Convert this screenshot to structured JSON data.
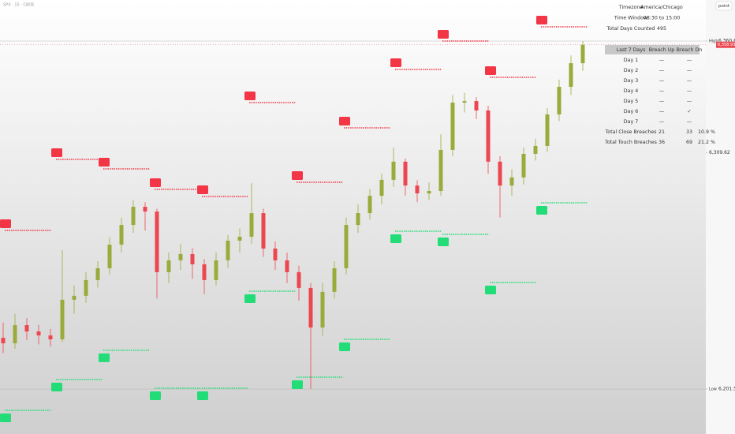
{
  "header": {
    "symbol": "SPX · 15 · CBOE",
    "button": "point"
  },
  "info": [
    [
      "Timezone",
      "America/Chicago"
    ],
    [
      "Time Window",
      "08:30 to 15:00"
    ],
    [
      "Total Days Counted",
      "495"
    ]
  ],
  "table": {
    "header": [
      "Last 7 Days",
      "Breach Up",
      "Breach Dn"
    ],
    "rows": [
      [
        "Day 1",
        "—",
        "—"
      ],
      [
        "Day 2",
        "—",
        "—"
      ],
      [
        "Day 3",
        "—",
        "—"
      ],
      [
        "Day 4",
        "—",
        "—"
      ],
      [
        "Day 5",
        "—",
        "—"
      ],
      [
        "Day 6",
        "—",
        "✓"
      ],
      [
        "Day 7",
        "—",
        "—"
      ],
      [
        "Total Close Breaches",
        "21",
        "33",
        "10.9 %"
      ],
      [
        "Total Touch Breaches",
        "36",
        "69",
        "21.2 %"
      ]
    ]
  },
  "chart_data": {
    "type": "candlestick",
    "open": [
      6225.0,
      6222.5,
      6230.8,
      6227.9,
      6226.1,
      6224.3,
      6242.4,
      6244.2,
      6251.4,
      6256.8,
      6267.6,
      6276.6,
      6284.9,
      6282.7,
      6255.0,
      6260.4,
      6263.3,
      6258.6,
      6251.4,
      6260.4,
      6269.4,
      6271.2,
      6282.0,
      6265.8,
      6260.4,
      6255.0,
      6247.8,
      6229.7,
      6246.0,
      6256.8,
      6276.6,
      6282.0,
      6289.9,
      6297.2,
      6305.5,
      6294.6,
      6291.0,
      6292.1,
      6310.9,
      6332.5,
      6333.2,
      6328.9,
      6305.5,
      6294.6,
      6298.3,
      6309.1,
      6312.7,
      6327.1,
      6339.7,
      6350.5
    ],
    "high": [
      6232.0,
      6236.0,
      6234.0,
      6231.0,
      6229.0,
      6265.0,
      6249.0,
      6255.0,
      6260.0,
      6271.0,
      6280.0,
      6288.0,
      6287.0,
      6284.0,
      6264.0,
      6268.0,
      6266.0,
      6261.0,
      6264.0,
      6272.0,
      6275.0,
      6295.7,
      6284.0,
      6269.0,
      6264.0,
      6258.0,
      6250.0,
      6250.0,
      6260.0,
      6280.0,
      6286.0,
      6293.0,
      6300.0,
      6312.0,
      6307.0,
      6297.0,
      6296.0,
      6318.0,
      6336.0,
      6337.0,
      6335.0,
      6331.0,
      6308.0,
      6302.0,
      6312.0,
      6316.0,
      6330.0,
      6343.0,
      6354.0,
      6360.64
    ],
    "low": [
      6218.0,
      6220.0,
      6224.0,
      6222.0,
      6221.0,
      6223.0,
      6236.0,
      6241.0,
      6248.0,
      6254.0,
      6264.0,
      6273.0,
      6274.0,
      6243.0,
      6250.0,
      6256.0,
      6252.0,
      6245.0,
      6249.0,
      6257.0,
      6264.0,
      6268.0,
      6262.0,
      6256.0,
      6250.0,
      6242.0,
      6201.59,
      6226.0,
      6243.0,
      6254.0,
      6273.0,
      6279.0,
      6286.0,
      6294.0,
      6290.0,
      6287.0,
      6288.0,
      6290.0,
      6308.0,
      6328.0,
      6325.0,
      6300.0,
      6280.0,
      6290.0,
      6295.0,
      6306.0,
      6310.0,
      6324.0,
      6336.0,
      6347.0
    ],
    "close": [
      6222.5,
      6230.8,
      6227.9,
      6226.1,
      6224.3,
      6242.4,
      6244.2,
      6251.4,
      6256.8,
      6267.6,
      6276.6,
      6284.9,
      6282.7,
      6255.0,
      6260.4,
      6263.3,
      6258.6,
      6251.4,
      6260.4,
      6269.4,
      6271.2,
      6282.0,
      6265.8,
      6260.4,
      6255.0,
      6247.8,
      6229.7,
      6246.0,
      6256.8,
      6276.6,
      6282.0,
      6289.9,
      6297.2,
      6305.5,
      6294.6,
      6291.0,
      6292.1,
      6310.9,
      6332.5,
      6333.2,
      6328.9,
      6305.5,
      6294.6,
      6298.3,
      6309.1,
      6312.7,
      6327.1,
      6339.7,
      6350.5,
      6358.93
    ],
    "up_color": "#9aab3c",
    "down_color": "#ec4750",
    "ylim": [
      6181.05,
      6379.39
    ],
    "yticks": [
      {
        "value": 6201.59,
        "label": "6,201.59"
      },
      {
        "value": 6309.62,
        "label": "6,309.62"
      },
      {
        "value": 6360.64,
        "label": "6,360.64"
      }
    ],
    "high_label": "High",
    "low_label": "Low",
    "last_price": {
      "value": 6358.93,
      "label": "6,358.93"
    },
    "resistance_levels": {
      "color": "#f23645",
      "values": [
        6274.1,
        6306.55,
        6302.22,
        6292.85,
        6289.6,
        6332.51,
        6296.09,
        6320.97,
        6347.66,
        6360.64,
        6344.05,
        6367.13
      ]
    },
    "support_levels": {
      "color": "#22dd77",
      "values": [
        6191.88,
        6205.94,
        6219.3,
        6201.97,
        6201.97,
        6246.33,
        6207.02,
        6224.33,
        6273.74,
        6272.29,
        6250.3,
        6286.72
      ]
    }
  }
}
